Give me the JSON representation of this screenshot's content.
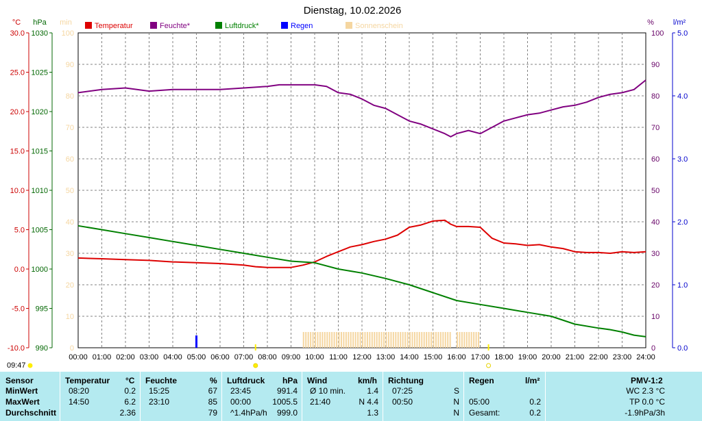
{
  "chart_data": {
    "type": "line",
    "title": "Dienstag, 10.02.2026",
    "time_start_label": "09:47",
    "x_ticks": [
      "00:00",
      "01:00",
      "02:00",
      "03:00",
      "04:00",
      "05:00",
      "06:00",
      "07:00",
      "08:00",
      "09:00",
      "10:00",
      "11:00",
      "12:00",
      "13:00",
      "14:00",
      "15:00",
      "16:00",
      "17:00",
      "18:00",
      "19:00",
      "20:00",
      "21:00",
      "22:00",
      "23:00",
      "24:00"
    ],
    "axes": {
      "temp": {
        "unit": "°C",
        "min": -10,
        "max": 30,
        "ticks": [
          "30.0",
          "25.0",
          "20.0",
          "15.0",
          "10.0",
          "5.0",
          "0.0",
          "-5.0",
          "-10.0"
        ],
        "color": "#cc0000"
      },
      "pressure": {
        "unit": "hPa",
        "min": 990,
        "max": 1030,
        "ticks": [
          "1030",
          "1025",
          "1020",
          "1015",
          "1010",
          "1005",
          "1000",
          "995",
          "990"
        ],
        "color": "#006600"
      },
      "sun": {
        "unit": "min",
        "min": 0,
        "max": 100,
        "ticks": [
          "100",
          "90",
          "80",
          "70",
          "60",
          "50",
          "40",
          "30",
          "20",
          "10",
          "0"
        ],
        "color": "#f5d6a0"
      },
      "humidity": {
        "unit": "%",
        "min": 0,
        "max": 100,
        "ticks": [
          "100",
          "90",
          "80",
          "70",
          "60",
          "50",
          "40",
          "30",
          "20",
          "10",
          "0"
        ],
        "color": "#660066"
      },
      "rain": {
        "unit": "l/m²",
        "min": 0,
        "max": 5,
        "ticks": [
          "5.0",
          "4.0",
          "3.0",
          "2.0",
          "1.0",
          "0.0"
        ],
        "color": "#0000cc"
      }
    },
    "legend": [
      {
        "name": "Temperatur",
        "color": "#dd0000"
      },
      {
        "name": "Feuchte*",
        "color": "#800080"
      },
      {
        "name": "Luftdruck*",
        "color": "#008000"
      },
      {
        "name": "Regen",
        "color": "#0000ff"
      },
      {
        "name": "Sonnenschein",
        "color": "#f5d6a0"
      }
    ],
    "series": [
      {
        "key": "temperature",
        "axis": "temp",
        "color": "#dd0000",
        "points": [
          [
            0,
            1.4
          ],
          [
            1,
            1.3
          ],
          [
            2,
            1.2
          ],
          [
            3,
            1.1
          ],
          [
            4,
            0.9
          ],
          [
            5,
            0.8
          ],
          [
            6,
            0.7
          ],
          [
            7,
            0.5
          ],
          [
            7.5,
            0.3
          ],
          [
            8,
            0.2
          ],
          [
            8.5,
            0.2
          ],
          [
            9,
            0.2
          ],
          [
            9.5,
            0.5
          ],
          [
            10,
            0.9
          ],
          [
            10.5,
            1.6
          ],
          [
            11,
            2.2
          ],
          [
            11.5,
            2.8
          ],
          [
            12,
            3.1
          ],
          [
            12.5,
            3.5
          ],
          [
            13,
            3.8
          ],
          [
            13.5,
            4.3
          ],
          [
            14,
            5.3
          ],
          [
            14.5,
            5.6
          ],
          [
            15,
            6.1
          ],
          [
            15.5,
            6.2
          ],
          [
            15.75,
            5.7
          ],
          [
            16,
            5.4
          ],
          [
            16.5,
            5.4
          ],
          [
            17,
            5.3
          ],
          [
            17.5,
            3.9
          ],
          [
            18,
            3.3
          ],
          [
            18.5,
            3.2
          ],
          [
            19,
            3.0
          ],
          [
            19.5,
            3.1
          ],
          [
            20,
            2.8
          ],
          [
            20.5,
            2.6
          ],
          [
            21,
            2.2
          ],
          [
            21.5,
            2.1
          ],
          [
            22,
            2.1
          ],
          [
            22.5,
            2.0
          ],
          [
            23,
            2.2
          ],
          [
            23.5,
            2.1
          ],
          [
            24,
            2.2
          ]
        ]
      },
      {
        "key": "humidity",
        "axis": "humidity",
        "color": "#800080",
        "points": [
          [
            0,
            81
          ],
          [
            1,
            82
          ],
          [
            2,
            82.5
          ],
          [
            3,
            81.5
          ],
          [
            4,
            82
          ],
          [
            5,
            82
          ],
          [
            6,
            82
          ],
          [
            7,
            82.5
          ],
          [
            8,
            83
          ],
          [
            8.5,
            83.5
          ],
          [
            9,
            83.5
          ],
          [
            10,
            83.5
          ],
          [
            10.5,
            83
          ],
          [
            11,
            81
          ],
          [
            11.5,
            80.5
          ],
          [
            12,
            79
          ],
          [
            12.5,
            77
          ],
          [
            13,
            76
          ],
          [
            13.5,
            74
          ],
          [
            14,
            72
          ],
          [
            14.5,
            71
          ],
          [
            15,
            69.5
          ],
          [
            15.5,
            68
          ],
          [
            15.75,
            67
          ],
          [
            16,
            68
          ],
          [
            16.5,
            69
          ],
          [
            17,
            68
          ],
          [
            17.5,
            70
          ],
          [
            18,
            72
          ],
          [
            18.5,
            73
          ],
          [
            19,
            74
          ],
          [
            19.5,
            74.5
          ],
          [
            20,
            75.5
          ],
          [
            20.5,
            76.5
          ],
          [
            21,
            77
          ],
          [
            21.5,
            78
          ],
          [
            22,
            79.5
          ],
          [
            22.5,
            80.5
          ],
          [
            23,
            81
          ],
          [
            23.5,
            82
          ],
          [
            24,
            85
          ]
        ]
      },
      {
        "key": "pressure",
        "axis": "pressure",
        "color": "#008000",
        "points": [
          [
            0,
            1005.5
          ],
          [
            1,
            1005.0
          ],
          [
            2,
            1004.5
          ],
          [
            3,
            1004.0
          ],
          [
            4,
            1003.5
          ],
          [
            5,
            1003.0
          ],
          [
            6,
            1002.5
          ],
          [
            7,
            1002.0
          ],
          [
            8,
            1001.5
          ],
          [
            9,
            1001.0
          ],
          [
            10,
            1000.8
          ],
          [
            11,
            1000.0
          ],
          [
            12,
            999.5
          ],
          [
            13,
            998.8
          ],
          [
            14,
            998.0
          ],
          [
            15,
            997.0
          ],
          [
            16,
            996.0
          ],
          [
            17,
            995.5
          ],
          [
            18,
            995.0
          ],
          [
            19,
            994.5
          ],
          [
            20,
            994.0
          ],
          [
            21,
            993.0
          ],
          [
            22,
            992.5
          ],
          [
            22.5,
            992.3
          ],
          [
            23,
            992.0
          ],
          [
            23.5,
            991.6
          ],
          [
            24,
            991.4
          ]
        ]
      }
    ],
    "rain_bars": [
      {
        "hour": 5.0,
        "value": 0.2
      }
    ],
    "sunshine_range": {
      "start": 9.5,
      "end": 16.95,
      "gap_start": 15.75,
      "gap_end": 15.9,
      "value": 5
    },
    "sunrise_label_time": 7.5,
    "sunset_label_time": 17.35
  },
  "table": {
    "headers": {
      "sensor": "Sensor",
      "temperatur": "Temperatur",
      "temp_unit": "°C",
      "feuchte": "Feuchte",
      "feuchte_unit": "%",
      "luftdruck": "Luftdruck",
      "luftdruck_unit": "hPa",
      "wind": "Wind",
      "wind_unit": "km/h",
      "richtung": "Richtung",
      "regen": "Regen",
      "regen_unit": "l/m²",
      "pmv": "PMV-1:2"
    },
    "rows": [
      {
        "label": "MinWert",
        "temp_time": "08:20",
        "temp_val": "0.2",
        "feuchte_time": "15:25",
        "feuchte_val": "67",
        "druck_time": "23:45",
        "druck_val": "991.4",
        "wind_label": "Ø 10 min.",
        "wind_val": "1.4",
        "richtung_time": "07:25",
        "richtung_val": "S",
        "regen_time": "",
        "regen_val": "",
        "pmv": "WC 2.3 °C"
      },
      {
        "label": "MaxWert",
        "temp_time": "14:50",
        "temp_val": "6.2",
        "feuchte_time": "23:10",
        "feuchte_val": "85",
        "druck_time": "00:00",
        "druck_val": "1005.5",
        "wind_label": "21:40",
        "wind_val": "N 4.4",
        "richtung_time": "00:50",
        "richtung_val": "N",
        "regen_time": "05:00",
        "regen_val": "0.2",
        "pmv": "TP 0.0 °C"
      },
      {
        "label": "Durchschnitt",
        "temp_time": "",
        "temp_val": "2.36",
        "feuchte_time": "",
        "feuchte_val": "79",
        "druck_time": "^1.4hPa/h",
        "druck_val": "999.0",
        "wind_label": "",
        "wind_val": "1.3",
        "richtung_time": "",
        "richtung_val": "N",
        "regen_time": "Gesamt:",
        "regen_val": "0.2",
        "pmv": "-1.9hPa/3h"
      }
    ]
  }
}
